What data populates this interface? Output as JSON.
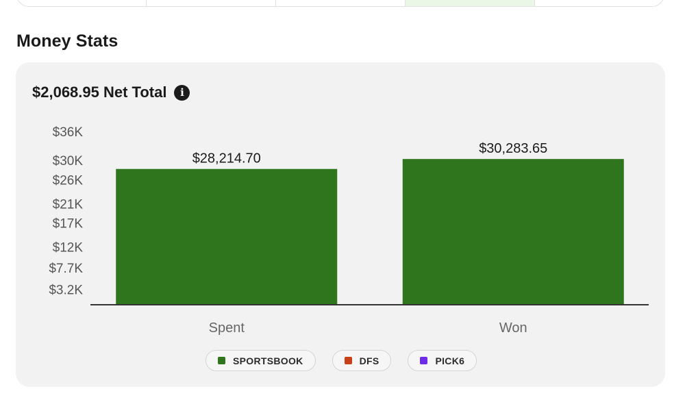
{
  "section": {
    "title": "Money Stats"
  },
  "summary": {
    "net_total": "$2,068.95 Net Total",
    "info_icon": "info-icon"
  },
  "chart_data": {
    "type": "bar",
    "categories": [
      "Spent",
      "Won"
    ],
    "values": [
      28214.7,
      30283.65
    ],
    "data_labels": [
      "$28,214.70",
      "$30,283.65"
    ],
    "yticks": [
      {
        "value": 3200,
        "label": "$3.2K"
      },
      {
        "value": 7700,
        "label": "$7.7K"
      },
      {
        "value": 12000,
        "label": "$12K"
      },
      {
        "value": 17000,
        "label": "$17K"
      },
      {
        "value": 21000,
        "label": "$21K"
      },
      {
        "value": 26000,
        "label": "$26K"
      },
      {
        "value": 30000,
        "label": "$30K"
      },
      {
        "value": 36000,
        "label": "$36K"
      }
    ],
    "ylim": [
      0,
      36000
    ],
    "bar_color": "#2e751e",
    "grid": false,
    "legend_position": "bottom-center",
    "legend": [
      {
        "label": "SPORTSBOOK",
        "color": "#2e751e"
      },
      {
        "label": "DFS",
        "color": "#c8401a"
      },
      {
        "label": "PICK6",
        "color": "#6c2ce8"
      }
    ]
  }
}
